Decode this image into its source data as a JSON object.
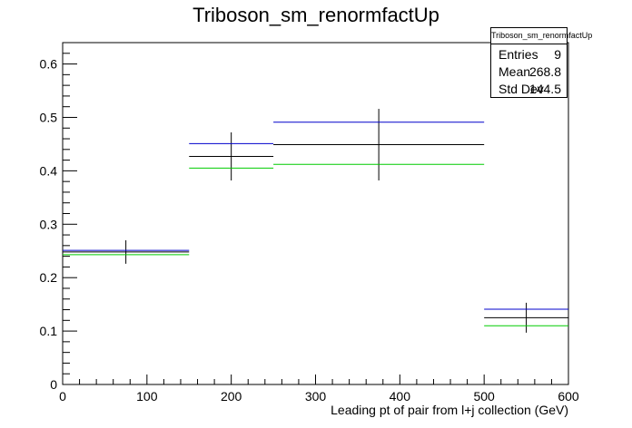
{
  "chart_data": {
    "type": "histogram",
    "title": "Triboson_sm_renormfactUp",
    "xlabel": "Leading pt of pair from l+j collection (GeV)",
    "ylabel": "",
    "xlim": [
      0,
      600
    ],
    "ylim": [
      0,
      0.64
    ],
    "x_ticks": [
      0,
      100,
      200,
      300,
      400,
      500,
      600
    ],
    "y_ticks": [
      0,
      0.1,
      0.2,
      0.3,
      0.4,
      0.5,
      0.6
    ],
    "x_tick_labels": [
      "0",
      "100",
      "200",
      "300",
      "400",
      "500",
      "600"
    ],
    "y_tick_labels": [
      "0",
      "0.1",
      "0.2",
      "0.3",
      "0.4",
      "0.5",
      "0.6"
    ],
    "bin_edges": [
      0,
      150,
      250,
      500,
      600
    ],
    "series": [
      {
        "color": "#000000",
        "values": [
          0.248,
          0.427,
          0.449,
          0.125
        ],
        "errors": [
          0.022,
          0.045,
          0.067,
          0.028
        ]
      },
      {
        "color": "#0000cc",
        "values": [
          0.251,
          0.451,
          0.491,
          0.141
        ],
        "errors": []
      },
      {
        "color": "#00cc00",
        "values": [
          0.243,
          0.405,
          0.412,
          0.11
        ],
        "errors": []
      }
    ],
    "grid": false,
    "legend": "none"
  },
  "stats": {
    "title": "Triboson_sm_renormfactUp",
    "rows": [
      {
        "key": "Entries",
        "value": "9"
      },
      {
        "key": "Mean",
        "value": "268.8"
      },
      {
        "key": "Std Dev",
        "value": "144.5"
      }
    ]
  }
}
